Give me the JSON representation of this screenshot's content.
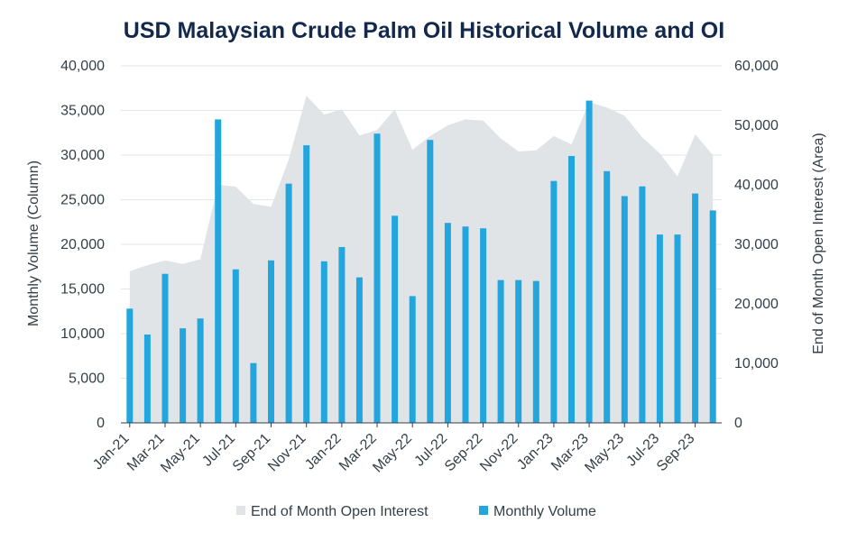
{
  "chart_data": {
    "type": "bar+area",
    "title": "USD Malaysian Crude Palm Oil Historical Volume and OI",
    "ylabel_left": "Monthly Volume (Column)",
    "ylabel_right": "End of Month Open Interest (Area)",
    "ylim_left": [
      0,
      40000
    ],
    "ylim_right": [
      0,
      60000
    ],
    "yticks_left": [
      "0",
      "5,000",
      "10,000",
      "15,000",
      "20,000",
      "25,000",
      "30,000",
      "35,000",
      "40,000"
    ],
    "yticks_right": [
      "0",
      "10,000",
      "20,000",
      "30,000",
      "40,000",
      "50,000",
      "60,000"
    ],
    "grid": true,
    "legend_position": "bottom",
    "categories": [
      "Jan-21",
      "Feb-21",
      "Mar-21",
      "Apr-21",
      "May-21",
      "Jun-21",
      "Jul-21",
      "Aug-21",
      "Sep-21",
      "Oct-21",
      "Nov-21",
      "Dec-21",
      "Jan-22",
      "Feb-22",
      "Mar-22",
      "Apr-22",
      "May-22",
      "Jun-22",
      "Jul-22",
      "Aug-22",
      "Sep-22",
      "Oct-22",
      "Nov-22",
      "Dec-22",
      "Jan-23",
      "Feb-23",
      "Mar-23",
      "Apr-23",
      "May-23",
      "Jun-23",
      "Jul-23",
      "Aug-23",
      "Sep-23",
      "Oct-23"
    ],
    "visible_tick_labels": [
      "Jan-21",
      "Mar-21",
      "May-21",
      "Jul-21",
      "Sep-21",
      "Nov-21",
      "Jan-22",
      "Mar-22",
      "May-22",
      "Jul-22",
      "Sep-22",
      "Nov-22",
      "Jan-23",
      "Mar-23",
      "May-23",
      "Jul-23",
      "Sep-23"
    ],
    "series": [
      {
        "name": "End of Month Open Interest",
        "kind": "area",
        "axis": "right",
        "color": "#e1e4e7",
        "values": [
          25500,
          26500,
          27300,
          26700,
          27500,
          40000,
          39700,
          36800,
          36300,
          44300,
          55000,
          51800,
          52700,
          48300,
          49200,
          52700,
          45900,
          48200,
          50000,
          51000,
          50800,
          47800,
          45600,
          45800,
          48200,
          46800,
          53900,
          53000,
          51600,
          48000,
          45300,
          41400,
          48500,
          45000
        ]
      },
      {
        "name": "Monthly Volume",
        "kind": "bar",
        "axis": "left",
        "color": "#23a6de",
        "values": [
          12800,
          9900,
          16700,
          10600,
          11700,
          34000,
          17200,
          6700,
          18200,
          26800,
          31100,
          18100,
          19700,
          16300,
          32400,
          23200,
          14200,
          31700,
          22400,
          22000,
          21800,
          16000,
          16000,
          15900,
          27100,
          29900,
          36100,
          28200,
          25400,
          26500,
          21100,
          21100,
          25700,
          23800
        ]
      }
    ]
  }
}
